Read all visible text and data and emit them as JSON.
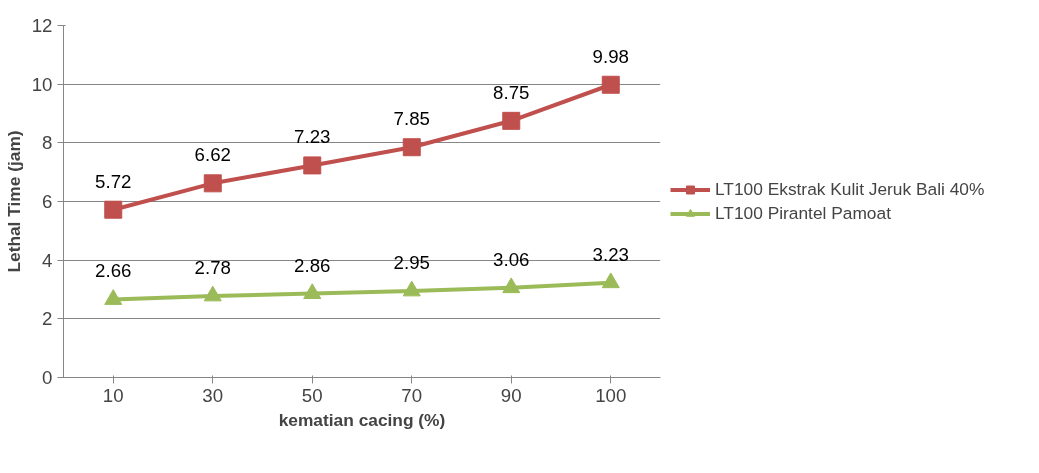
{
  "chart_data": {
    "type": "line",
    "xlabel": "kematian cacing (%)",
    "ylabel": "Lethal Time (jam)",
    "categories": [
      "10",
      "30",
      "50",
      "70",
      "90",
      "100"
    ],
    "series": [
      {
        "name": "LT100 Ekstrak Kulit Jeruk Bali 40%",
        "color": "#c0504d",
        "marker": "square",
        "values": [
          5.72,
          6.62,
          7.23,
          7.85,
          8.75,
          9.98
        ]
      },
      {
        "name": "LT100 Pirantel Pamoat",
        "color": "#9bbb59",
        "marker": "triangle",
        "values": [
          2.66,
          2.78,
          2.86,
          2.95,
          3.06,
          3.23
        ]
      }
    ],
    "ylim": [
      0,
      12
    ],
    "yticks": [
      0,
      2,
      4,
      6,
      8,
      10,
      12
    ],
    "grid": "y",
    "legend": "right",
    "data_labels": true,
    "line_style": "solid"
  }
}
